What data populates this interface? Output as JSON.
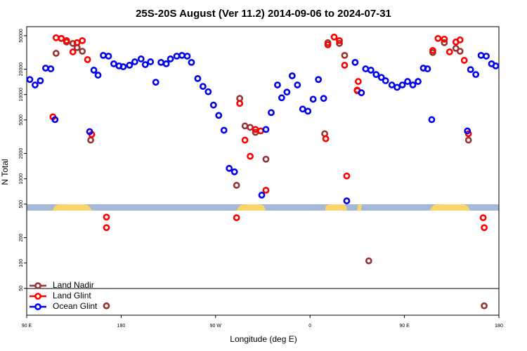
{
  "chart_data": {
    "type": "scatter",
    "title": "25S-20S August (Ver 11.2)   2014-09-06 to 2024-07-31",
    "x_label": "Longitude (deg E)",
    "y_label": "N Total",
    "log_y": true,
    "grid": false,
    "legend": "lower left",
    "xlim": [
      90,
      540
    ],
    "xticks": [
      {
        "value": 90,
        "label": "90 E"
      },
      180,
      {
        "value": 270,
        "label": "90 W"
      },
      {
        "value": 360,
        "label": "0"
      },
      {
        "value": 450,
        "label": "90 E"
      },
      {
        "value": 540,
        "label": "180"
      }
    ],
    "ylim": [
      24,
      64000
    ],
    "yticks": [
      50,
      100,
      200,
      500,
      1000,
      2000,
      5000,
      10000,
      20000,
      50000
    ],
    "series": [
      {
        "name": "Land Nadir",
        "color": "#993333",
        "x": [
          118,
          123,
          128,
          134,
          138,
          143,
          151,
          166,
          290,
          293,
          298,
          303,
          308,
          318,
          374,
          377,
          388,
          393,
          405,
          416,
          477,
          488,
          499,
          503,
          511,
          526
        ],
        "values": [
          30900,
          46400,
          42100,
          40500,
          36100,
          32700,
          2880,
          31,
          837,
          9000,
          4240,
          4080,
          3560,
          1710,
          3430,
          41300,
          40500,
          29200,
          11100,
          106,
          31600,
          41300,
          35400,
          32700,
          2880,
          31
        ]
      },
      {
        "name": "Land Glint",
        "color": "#ff0000",
        "x": [
          115,
          118,
          123,
          128,
          134,
          138,
          143,
          148,
          152,
          166,
          166,
          290,
          293,
          298,
          303,
          308,
          313,
          318,
          375,
          377,
          383,
          388,
          393,
          395,
          406,
          405,
          477,
          482,
          488,
          493,
          499,
          503,
          507,
          511,
          525,
          526
        ],
        "values": [
          5440,
          47300,
          46400,
          43700,
          32100,
          41300,
          43700,
          26000,
          3360,
          263,
          351,
          345,
          7850,
          2880,
          1850,
          3850,
          3700,
          731,
          2990,
          39000,
          48200,
          43700,
          22300,
          1080,
          14300,
          11300,
          33400,
          46400,
          45500,
          32100,
          42100,
          44600,
          25500,
          3430,
          345,
          263
        ]
      },
      {
        "name": "Ocean Glint",
        "color": "#0000ee",
        "x": [
          93,
          98,
          103,
          108,
          113,
          117,
          150,
          154,
          158,
          163,
          168,
          173,
          178,
          182,
          188,
          193,
          199,
          203,
          208,
          213,
          218,
          223,
          227,
          233,
          238,
          243,
          247,
          253,
          258,
          263,
          268,
          273,
          278,
          283,
          288,
          314,
          318,
          323,
          329,
          333,
          338,
          343,
          348,
          353,
          358,
          363,
          368,
          373,
          395,
          403,
          409,
          413,
          418,
          423,
          428,
          432,
          438,
          443,
          448,
          453,
          458,
          463,
          468,
          472,
          476,
          510,
          513,
          518,
          523,
          528,
          533,
          537
        ],
        "values": [
          15100,
          13000,
          14600,
          20600,
          20200,
          5040,
          3630,
          19500,
          17000,
          29200,
          28600,
          23200,
          21900,
          21400,
          22300,
          24500,
          26500,
          22700,
          24500,
          14000,
          24100,
          23200,
          26500,
          28600,
          29200,
          28600,
          24100,
          15500,
          12500,
          10800,
          7500,
          5660,
          3770,
          1330,
          1210,
          640,
          3850,
          6110,
          13000,
          9160,
          10700,
          16700,
          13000,
          6730,
          6350,
          8810,
          15100,
          9000,
          547,
          24100,
          10500,
          20200,
          19500,
          17300,
          16000,
          14600,
          13000,
          12200,
          13000,
          14300,
          13000,
          14300,
          20600,
          20200,
          5040,
          3700,
          19800,
          17300,
          29200,
          28600,
          23200,
          21900
        ]
      }
    ]
  }
}
